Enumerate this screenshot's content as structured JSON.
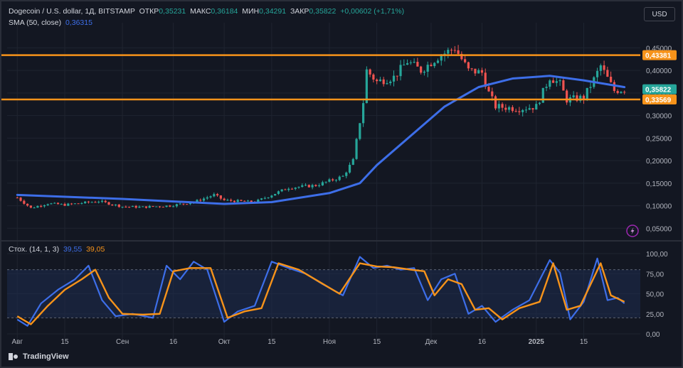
{
  "header": {
    "symbol": "Dogecoin / U.S. dollar, 1Д, BITSTAMP",
    "open_label": "ОТКР",
    "open": "0,35231",
    "high_label": "МАКС",
    "high": "0,36184",
    "low_label": "МИН",
    "low": "0,34291",
    "close_label": "ЗАКР",
    "close": "0,35822",
    "change": "+0,00602 (+1,71%)",
    "sma_label": "SMA (50, close)",
    "sma_value": "0,36315",
    "stoch_label": "Стох. (14, 1, 3)",
    "stoch_k": "39,55",
    "stoch_d": "39,05"
  },
  "currency_button": "USD",
  "brand": "TradingView",
  "colors": {
    "up": "#26a69a",
    "down": "#ef5350",
    "sma": "#3d6ee8",
    "level": "#f7931a",
    "stoch_k": "#3d6ee8",
    "stoch_d": "#f7931a",
    "background": "#131722",
    "grid": "#1f2430"
  },
  "chart_data": [
    {
      "type": "candlestick",
      "title": "Dogecoin / U.S. dollar, 1Д, BITSTAMP",
      "price_ticks": [
        "0,45000",
        "0,40000",
        "0,35000",
        "0,30000",
        "0,25000",
        "0,20000",
        "0,15000",
        "0,10000",
        "0,05000"
      ],
      "ylim": [
        0.03,
        0.49
      ],
      "x_ticks": [
        "Авг",
        "15",
        "Сен",
        "16",
        "Окт",
        "15",
        "Ноя",
        "15",
        "Дек",
        "16",
        "2025",
        "15"
      ],
      "levels": [
        {
          "value": 0.43381,
          "label": "0,43381"
        },
        {
          "value": 0.33569,
          "label": "0,33569"
        }
      ],
      "last_price": {
        "value": 0.35822,
        "label": "0,35822"
      },
      "grid": true,
      "anchors": [
        [
          "2024-08-01",
          0.118
        ],
        [
          "2024-08-05",
          0.095
        ],
        [
          "2024-08-10",
          0.105
        ],
        [
          "2024-08-15",
          0.102
        ],
        [
          "2024-08-25",
          0.11
        ],
        [
          "2024-09-01",
          0.098
        ],
        [
          "2024-09-07",
          0.097
        ],
        [
          "2024-09-15",
          0.1
        ],
        [
          "2024-09-22",
          0.108
        ],
        [
          "2024-09-28",
          0.124
        ],
        [
          "2024-10-01",
          0.112
        ],
        [
          "2024-10-10",
          0.108
        ],
        [
          "2024-10-20",
          0.14
        ],
        [
          "2024-10-28",
          0.145
        ],
        [
          "2024-11-01",
          0.155
        ],
        [
          "2024-11-05",
          0.165
        ],
        [
          "2024-11-08",
          0.2
        ],
        [
          "2024-11-11",
          0.33
        ],
        [
          "2024-11-12",
          0.4
        ],
        [
          "2024-11-15",
          0.375
        ],
        [
          "2024-11-20",
          0.385
        ],
        [
          "2024-11-24",
          0.42
        ],
        [
          "2024-11-28",
          0.4
        ],
        [
          "2024-12-03",
          0.43
        ],
        [
          "2024-12-08",
          0.45
        ],
        [
          "2024-12-12",
          0.4
        ],
        [
          "2024-12-16",
          0.395
        ],
        [
          "2024-12-18",
          0.35
        ],
        [
          "2024-12-20",
          0.32
        ],
        [
          "2024-12-27",
          0.315
        ],
        [
          "2025-01-01",
          0.32
        ],
        [
          "2025-01-05",
          0.385
        ],
        [
          "2025-01-08",
          0.37
        ],
        [
          "2025-01-10",
          0.335
        ],
        [
          "2025-01-15",
          0.34
        ],
        [
          "2025-01-18",
          0.38
        ],
        [
          "2025-01-20",
          0.41
        ],
        [
          "2025-01-24",
          0.355
        ],
        [
          "2025-01-27",
          0.358
        ]
      ],
      "sma_series": [
        [
          "2024-08-01",
          0.124
        ],
        [
          "2024-09-01",
          0.115
        ],
        [
          "2024-10-01",
          0.104
        ],
        [
          "2024-10-15",
          0.108
        ],
        [
          "2024-11-01",
          0.128
        ],
        [
          "2024-11-10",
          0.15
        ],
        [
          "2024-11-15",
          0.19
        ],
        [
          "2024-11-25",
          0.255
        ],
        [
          "2024-12-05",
          0.32
        ],
        [
          "2024-12-15",
          0.363
        ],
        [
          "2024-12-25",
          0.382
        ],
        [
          "2025-01-05",
          0.388
        ],
        [
          "2025-01-15",
          0.378
        ],
        [
          "2025-01-27",
          0.363
        ]
      ]
    },
    {
      "type": "line",
      "title": "Стох. (14, 1, 3)",
      "ylim": [
        0,
        100
      ],
      "y_ticks": [
        "100,00",
        "75,00",
        "50,00",
        "25,00",
        "0,00"
      ],
      "band": [
        20,
        80
      ],
      "series": [
        {
          "name": "%K",
          "values": [
            [
              "2024-08-01",
              18
            ],
            [
              "2024-08-04",
              10
            ],
            [
              "2024-08-08",
              38
            ],
            [
              "2024-08-13",
              55
            ],
            [
              "2024-08-18",
              68
            ],
            [
              "2024-08-22",
              85
            ],
            [
              "2024-08-26",
              42
            ],
            [
              "2024-08-30",
              22
            ],
            [
              "2024-09-04",
              25
            ],
            [
              "2024-09-10",
              20
            ],
            [
              "2024-09-14",
              85
            ],
            [
              "2024-09-18",
              68
            ],
            [
              "2024-09-22",
              90
            ],
            [
              "2024-09-26",
              80
            ],
            [
              "2024-10-01",
              15
            ],
            [
              "2024-10-05",
              28
            ],
            [
              "2024-10-10",
              35
            ],
            [
              "2024-10-15",
              90
            ],
            [
              "2024-10-20",
              82
            ],
            [
              "2024-10-25",
              75
            ],
            [
              "2024-10-30",
              62
            ],
            [
              "2024-11-05",
              48
            ],
            [
              "2024-11-10",
              96
            ],
            [
              "2024-11-14",
              82
            ],
            [
              "2024-11-18",
              85
            ],
            [
              "2024-11-22",
              80
            ],
            [
              "2024-11-26",
              82
            ],
            [
              "2024-11-30",
              42
            ],
            [
              "2024-12-04",
              68
            ],
            [
              "2024-12-08",
              75
            ],
            [
              "2024-12-12",
              25
            ],
            [
              "2024-12-16",
              35
            ],
            [
              "2024-12-20",
              15
            ],
            [
              "2024-12-25",
              30
            ],
            [
              "2024-12-30",
              42
            ],
            [
              "2025-01-05",
              92
            ],
            [
              "2025-01-08",
              76
            ],
            [
              "2025-01-11",
              18
            ],
            [
              "2025-01-15",
              40
            ],
            [
              "2025-01-19",
              94
            ],
            [
              "2025-01-22",
              42
            ],
            [
              "2025-01-25",
              45
            ],
            [
              "2025-01-27",
              38
            ]
          ]
        },
        {
          "name": "%D",
          "values": [
            [
              "2024-08-01",
              22
            ],
            [
              "2024-08-05",
              12
            ],
            [
              "2024-08-10",
              35
            ],
            [
              "2024-08-15",
              55
            ],
            [
              "2024-08-20",
              68
            ],
            [
              "2024-08-24",
              80
            ],
            [
              "2024-08-28",
              45
            ],
            [
              "2024-09-01",
              25
            ],
            [
              "2024-09-07",
              24
            ],
            [
              "2024-09-12",
              25
            ],
            [
              "2024-09-16",
              78
            ],
            [
              "2024-09-21",
              82
            ],
            [
              "2024-09-27",
              82
            ],
            [
              "2024-10-02",
              20
            ],
            [
              "2024-10-07",
              28
            ],
            [
              "2024-10-12",
              32
            ],
            [
              "2024-10-17",
              88
            ],
            [
              "2024-10-23",
              80
            ],
            [
              "2024-10-29",
              65
            ],
            [
              "2024-11-04",
              50
            ],
            [
              "2024-11-10",
              88
            ],
            [
              "2024-11-15",
              84
            ],
            [
              "2024-11-20",
              83
            ],
            [
              "2024-11-25",
              80
            ],
            [
              "2024-11-29",
              78
            ],
            [
              "2024-12-02",
              48
            ],
            [
              "2024-12-06",
              68
            ],
            [
              "2024-12-10",
              62
            ],
            [
              "2024-12-14",
              30
            ],
            [
              "2024-12-18",
              32
            ],
            [
              "2024-12-22",
              18
            ],
            [
              "2024-12-27",
              32
            ],
            [
              "2025-01-02",
              40
            ],
            [
              "2025-01-06",
              88
            ],
            [
              "2025-01-10",
              30
            ],
            [
              "2025-01-14",
              35
            ],
            [
              "2025-01-20",
              88
            ],
            [
              "2025-01-23",
              48
            ],
            [
              "2025-01-27",
              40
            ]
          ]
        }
      ]
    }
  ]
}
